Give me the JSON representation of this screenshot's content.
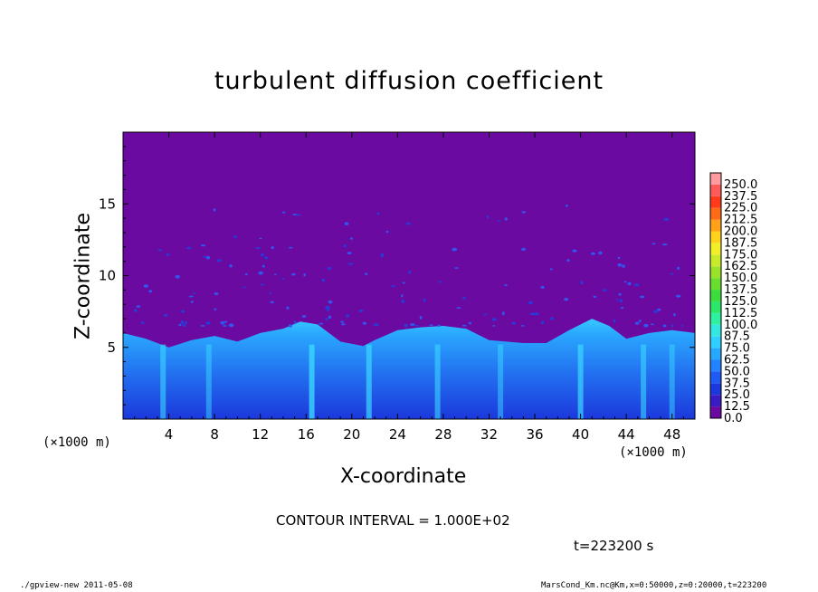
{
  "chart_data": {
    "type": "heatmap",
    "title": "turbulent diffusion coefficient",
    "xlabel": "X-coordinate",
    "ylabel": "Z-coordinate",
    "x_unit_label": "(×1000 m)",
    "x_ticks": [
      4,
      8,
      12,
      16,
      20,
      24,
      28,
      32,
      36,
      40,
      44,
      48
    ],
    "y_ticks": [
      5,
      10,
      15
    ],
    "xlim": [
      0,
      50
    ],
    "ylim": [
      0,
      20
    ],
    "colorbar": {
      "levels": [
        "0.0",
        "12.5",
        "25.0",
        "37.5",
        "50.0",
        "62.5",
        "75.0",
        "87.5",
        "100.0",
        "112.5",
        "125.0",
        "137.5",
        "150.0",
        "162.5",
        "175.0",
        "187.5",
        "200.0",
        "212.5",
        "225.0",
        "237.5",
        "250.0"
      ],
      "colors": [
        "#6a0aa0",
        "#3a1cc4",
        "#1c38dc",
        "#1f5af2",
        "#2282ff",
        "#27a8ff",
        "#2fd0ff",
        "#33e8e0",
        "#2ef0a0",
        "#2ce86a",
        "#3cdc3c",
        "#6ade2e",
        "#9ae22a",
        "#c8ea2a",
        "#f2ee2a",
        "#ffd21e",
        "#ffa21a",
        "#ff6a16",
        "#ff3a1a",
        "#ff5a5a",
        "#ff9aa0"
      ]
    },
    "surface_layer_top_km": [
      {
        "x": 0,
        "z": 6.0
      },
      {
        "x": 2,
        "z": 5.6
      },
      {
        "x": 4,
        "z": 5.0
      },
      {
        "x": 6,
        "z": 5.5
      },
      {
        "x": 8,
        "z": 5.8
      },
      {
        "x": 10,
        "z": 5.4
      },
      {
        "x": 12,
        "z": 6.0
      },
      {
        "x": 14,
        "z": 6.3
      },
      {
        "x": 15.5,
        "z": 6.8
      },
      {
        "x": 17,
        "z": 6.6
      },
      {
        "x": 19,
        "z": 5.4
      },
      {
        "x": 21,
        "z": 5.1
      },
      {
        "x": 22,
        "z": 5.5
      },
      {
        "x": 24,
        "z": 6.2
      },
      {
        "x": 26,
        "z": 6.4
      },
      {
        "x": 28,
        "z": 6.5
      },
      {
        "x": 30,
        "z": 6.3
      },
      {
        "x": 32,
        "z": 5.5
      },
      {
        "x": 35,
        "z": 5.3
      },
      {
        "x": 37,
        "z": 5.3
      },
      {
        "x": 39,
        "z": 6.2
      },
      {
        "x": 41,
        "z": 7.0
      },
      {
        "x": 42.5,
        "z": 6.5
      },
      {
        "x": 44,
        "z": 5.6
      },
      {
        "x": 46,
        "z": 6.0
      },
      {
        "x": 48,
        "z": 6.2
      },
      {
        "x": 50,
        "z": 6.0
      }
    ]
  },
  "annotations": {
    "contour_interval": "CONTOUR INTERVAL = 1.000E+02",
    "time": "t=223200 s",
    "footer_left": "./gpview-new  2011-05-08",
    "footer_right": "MarsCond_Km.nc@Km,x=0:50000,z=0:20000,t=223200"
  }
}
